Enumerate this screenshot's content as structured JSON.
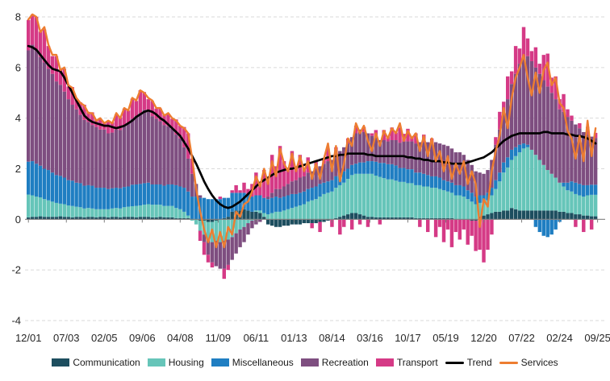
{
  "figure": {
    "background": "#ffffff",
    "plot": {
      "gridline_color": "#d9d9d9",
      "gridline_style": "dashed",
      "zero_axis_color": "#808080",
      "tick_label_color": "#262626"
    }
  },
  "y_axis": {
    "min": -4,
    "max": 8,
    "tick_values": [
      8,
      6,
      4,
      2,
      0,
      -2,
      -4
    ],
    "tick_labels": [
      "8",
      "6",
      "4",
      "2",
      "0",
      "-2",
      "-4"
    ]
  },
  "x_axis": {
    "labels": [
      "12/01",
      "07/03",
      "02/05",
      "09/06",
      "04/08",
      "11/09",
      "06/11",
      "01/13",
      "08/14",
      "03/16",
      "10/17",
      "05/19",
      "12/20",
      "07/22",
      "02/24",
      "09/25"
    ],
    "label_interval_months": 19
  },
  "legend": {
    "position": "bottom-center",
    "items": [
      {
        "label": "Communication",
        "color": "#1d4e5f",
        "marker": "box"
      },
      {
        "label": "Housing",
        "color": "#66c5b9",
        "marker": "box"
      },
      {
        "label": "Miscellaneous",
        "color": "#1f7ec2",
        "marker": "box"
      },
      {
        "label": "Recreation",
        "color": "#7e4e80",
        "marker": "box"
      },
      {
        "label": "Transport",
        "color": "#d53a86",
        "marker": "box"
      },
      {
        "label": "Trend",
        "color": "#000000",
        "marker": "line"
      },
      {
        "label": "Services",
        "color": "#ed7d31",
        "marker": "line"
      }
    ]
  },
  "chart_data": {
    "type": "bar",
    "subtype": "stacked-bars-with-line-overlays",
    "title": "",
    "xlabel": "",
    "ylabel": "",
    "ylim": [
      -4,
      8
    ],
    "grid": "horizontal dashed at 8,6,4,2,-2,-4; solid gray axis at 0",
    "legend_position": "bottom",
    "x_start": "12/01",
    "x_end": "09/25",
    "sampling_note": "values estimated from pixels, sampled every 2 months Dec-2001 to Sep-2025 (143 points)",
    "x_tick_labels": [
      "12/01",
      "07/03",
      "02/05",
      "09/06",
      "04/08",
      "11/09",
      "06/11",
      "01/13",
      "08/14",
      "03/16",
      "10/17",
      "05/19",
      "12/20",
      "07/22",
      "02/24",
      "09/25"
    ],
    "series": [
      {
        "name": "Communication",
        "type": "bar",
        "color": "#1d4e5f",
        "values": [
          0.08,
          0.1,
          0.1,
          0.12,
          0.1,
          0.1,
          0.1,
          0.1,
          0.12,
          0.1,
          0.1,
          0.08,
          0.1,
          0.1,
          0.08,
          0.1,
          0.1,
          0.08,
          0.1,
          0.1,
          0.08,
          0.1,
          0.1,
          0.08,
          0.1,
          0.1,
          0.1,
          0.08,
          0.1,
          0.1,
          0.1,
          0.08,
          0.08,
          0.1,
          0.08,
          0.08,
          0.08,
          0.05,
          0.05,
          0.05,
          0.05,
          0,
          0,
          -0.05,
          -0.05,
          -0.1,
          -0.1,
          -0.05,
          0,
          0.05,
          0.1,
          0.3,
          0.35,
          0.35,
          0.4,
          0.35,
          0.3,
          0.3,
          0.25,
          0.1,
          -0.2,
          -0.25,
          -0.3,
          -0.3,
          -0.25,
          -0.25,
          -0.2,
          -0.2,
          -0.2,
          -0.15,
          -0.15,
          -0.15,
          -0.15,
          -0.1,
          -0.1,
          -0.05,
          0,
          0.05,
          0.1,
          0.15,
          0.2,
          0.25,
          0.25,
          0.2,
          0.15,
          0.1,
          0.1,
          0.08,
          0.08,
          0.08,
          0.08,
          0.08,
          0.08,
          0.08,
          0.08,
          0.08,
          0.08,
          0.05,
          0.05,
          0.05,
          0.05,
          0.05,
          0.05,
          0.05,
          0.05,
          0.05,
          0.05,
          0,
          0,
          0,
          0,
          -0.05,
          -0.05,
          0.1,
          0.15,
          0.2,
          0.25,
          0.3,
          0.3,
          0.35,
          0.35,
          0.45,
          0.4,
          0.35,
          0.35,
          0.35,
          0.35,
          0.35,
          0.35,
          0.35,
          0.35,
          0.35,
          0.35,
          0.3,
          0.3,
          0.25,
          0.25,
          0.2,
          0.2,
          0.15,
          0.15,
          0.12,
          0.12
        ]
      },
      {
        "name": "Housing",
        "type": "bar",
        "color": "#66c5b9",
        "values": [
          0.9,
          0.85,
          0.8,
          0.75,
          0.7,
          0.65,
          0.6,
          0.55,
          0.5,
          0.5,
          0.45,
          0.45,
          0.4,
          0.38,
          0.35,
          0.35,
          0.33,
          0.32,
          0.3,
          0.3,
          0.32,
          0.33,
          0.35,
          0.35,
          0.38,
          0.4,
          0.42,
          0.45,
          0.45,
          0.48,
          0.5,
          0.5,
          0.5,
          0.48,
          0.45,
          0.45,
          0.45,
          0.4,
          0.35,
          0.25,
          0.1,
          -0.05,
          -0.2,
          -0.4,
          -0.55,
          -0.7,
          -0.8,
          -0.8,
          -0.9,
          -0.85,
          -0.8,
          -0.7,
          -0.55,
          -0.4,
          -0.3,
          -0.15,
          -0.05,
          0.05,
          0.1,
          0.15,
          0.2,
          0.25,
          0.3,
          0.3,
          0.35,
          0.4,
          0.45,
          0.5,
          0.55,
          0.6,
          0.7,
          0.75,
          0.8,
          0.9,
          1,
          1.05,
          1.1,
          1.2,
          1.25,
          1.3,
          1.4,
          1.5,
          1.55,
          1.6,
          1.65,
          1.7,
          1.7,
          1.65,
          1.6,
          1.55,
          1.5,
          1.5,
          1.45,
          1.4,
          1.4,
          1.35,
          1.35,
          1.3,
          1.3,
          1.25,
          1.25,
          1.2,
          1.2,
          1.15,
          1.1,
          1.05,
          1,
          0.95,
          0.95,
          0.9,
          0.8,
          0.7,
          0.6,
          0.55,
          0.5,
          0.55,
          0.7,
          0.9,
          1.2,
          1.5,
          1.7,
          1.9,
          2.1,
          2.3,
          2.45,
          2.5,
          2.4,
          2.2,
          2,
          1.8,
          1.6,
          1.45,
          1.3,
          1.15,
          1,
          0.9,
          0.85,
          0.8,
          0.75,
          0.75,
          0.8,
          0.85,
          0.85
        ]
      },
      {
        "name": "Miscellaneous",
        "type": "bar",
        "color": "#1f7ec2",
        "values": [
          1.3,
          1.35,
          1.3,
          1.25,
          1.2,
          1.2,
          1.15,
          1.1,
          1.1,
          1.05,
          1,
          1,
          0.95,
          0.95,
          0.9,
          0.9,
          0.9,
          0.85,
          0.85,
          0.85,
          0.8,
          0.8,
          0.8,
          0.8,
          0.8,
          0.8,
          0.85,
          0.85,
          0.85,
          0.85,
          0.85,
          0.8,
          0.8,
          0.8,
          0.8,
          0.85,
          0.85,
          0.9,
          0.9,
          0.95,
          0.95,
          0.9,
          0.9,
          0.85,
          0.85,
          0.8,
          0.8,
          0.8,
          0.8,
          0.8,
          0.75,
          0.75,
          0.7,
          0.7,
          0.65,
          0.65,
          0.6,
          0.6,
          0.6,
          0.6,
          0.6,
          0.6,
          0.6,
          0.55,
          0.55,
          0.55,
          0.55,
          0.5,
          0.5,
          0.5,
          0.5,
          0.5,
          0.5,
          0.5,
          0.45,
          0.45,
          0.45,
          0.45,
          0.45,
          0.45,
          0.4,
          0.4,
          0.4,
          0.45,
          0.45,
          0.5,
          0.5,
          0.55,
          0.55,
          0.6,
          0.6,
          0.6,
          0.6,
          0.55,
          0.55,
          0.55,
          0.55,
          0.5,
          0.5,
          0.5,
          0.45,
          0.45,
          0.45,
          0.45,
          0.4,
          0.4,
          0.4,
          0.4,
          0.4,
          0.4,
          0.35,
          0.35,
          0.3,
          0.3,
          0.3,
          0.3,
          0.3,
          0.35,
          0.35,
          0.4,
          0.4,
          0.4,
          0.35,
          0.3,
          0.2,
          0.1,
          0,
          -0.3,
          -0.5,
          -0.65,
          -0.7,
          -0.6,
          -0.4,
          -0.1,
          0.15,
          0.3,
          0.4,
          0.45,
          0.45,
          0.45,
          0.4,
          0.4,
          0.4
        ]
      },
      {
        "name": "Recreation",
        "type": "bar",
        "color": "#7e4e80",
        "values": [
          4.4,
          4.6,
          4.5,
          4.3,
          4.2,
          4,
          3.9,
          3.7,
          3.6,
          3.4,
          3.2,
          3,
          2.9,
          2.7,
          2.6,
          2.5,
          2.4,
          2.4,
          2.3,
          2.3,
          2.2,
          2.2,
          2.3,
          2.3,
          2.4,
          2.5,
          2.6,
          2.7,
          2.8,
          2.9,
          2.8,
          2.7,
          2.6,
          2.5,
          2.4,
          2.3,
          2.2,
          2,
          1.9,
          1.6,
          1.3,
          0.9,
          0.5,
          0.1,
          -0.3,
          -0.6,
          -0.8,
          -1,
          -1.05,
          -1.1,
          -1,
          -0.9,
          -0.8,
          -0.7,
          -0.6,
          -0.45,
          -0.3,
          -0.2,
          -0.1,
          0,
          0.1,
          0.2,
          0.3,
          0.35,
          0.4,
          0.45,
          0.5,
          0.55,
          0.6,
          0.6,
          0.65,
          0.65,
          0.7,
          0.7,
          0.75,
          0.8,
          0.8,
          0.85,
          0.9,
          0.95,
          1,
          1.1,
          1.2,
          1.3,
          1.2,
          1.1,
          1,
          0.95,
          0.9,
          0.9,
          0.9,
          0.95,
          1,
          1,
          1.05,
          1.1,
          1.1,
          1.15,
          1.2,
          1.25,
          1.3,
          1.3,
          1.35,
          1.35,
          1.4,
          1.4,
          1.35,
          1.3,
          1.3,
          1.25,
          1.2,
          1.1,
          1,
          0.9,
          0.85,
          0.9,
          1.1,
          1.4,
          1.7,
          2,
          2.3,
          2.6,
          2.9,
          3.2,
          3.4,
          3.5,
          3.5,
          3.45,
          3.4,
          3.35,
          3.3,
          3.2,
          3.1,
          2.9,
          2.8,
          2.6,
          2.4,
          2.3,
          2.2,
          2.1,
          2,
          1.9,
          1.85
        ]
      },
      {
        "name": "Transport",
        "type": "bar",
        "color": "#d53a86",
        "values": [
          1.2,
          1.2,
          1.3,
          1,
          1.3,
          0.9,
          0.7,
          1,
          0.6,
          0.9,
          0.5,
          0.7,
          0.4,
          0.5,
          0.6,
          0.4,
          0.5,
          0.3,
          0.4,
          0.3,
          0.5,
          0.4,
          0.6,
          0.5,
          0.7,
          0.5,
          0.8,
          0.6,
          0.9,
          0.7,
          0.5,
          0.6,
          0.4,
          0.5,
          0.4,
          0.5,
          0.4,
          0.6,
          0.5,
          0.8,
          1,
          0.6,
          0,
          -0.4,
          -0.5,
          -0.3,
          -0.2,
          0,
          0.1,
          -0.4,
          -0.2,
          0.1,
          0.3,
          0.1,
          0.4,
          0.2,
          0.5,
          0.9,
          0.5,
          1.1,
          0.7,
          1.5,
          0.9,
          1.7,
          1,
          0.6,
          1.2,
          0.5,
          0.9,
          0.3,
          0.6,
          -0.2,
          0.3,
          -0.4,
          0.2,
          0.5,
          -0.3,
          0.3,
          -0.6,
          -0.3,
          0.2,
          -0.4,
          0.3,
          -0.2,
          0.2,
          -0.3,
          0.1,
          0.3,
          -0.2,
          0.4,
          0.2,
          0.5,
          0.3,
          0.6,
          0.3,
          0.5,
          0.2,
          0.4,
          -0.3,
          0.3,
          -0.5,
          0.2,
          -0.7,
          -0.3,
          -0.9,
          -0.4,
          -1.1,
          -0.5,
          -0.8,
          -0.4,
          -1,
          -0.6,
          -1.2,
          -1.2,
          -1.7,
          -1.2,
          -0.6,
          0.3,
          0.7,
          0.4,
          0.9,
          0.5,
          1.1,
          0.6,
          1.2,
          0.7,
          0.4,
          0.8,
          0.4,
          1,
          1.3,
          0.6,
          0.9,
          0.4,
          0.7,
          0.3,
          0.2,
          -0.3,
          0.2,
          -0.5,
          0.3,
          -0.4,
          0.2
        ]
      },
      {
        "name": "Trend",
        "type": "line",
        "color": "#000000",
        "values": [
          6.85,
          6.8,
          6.7,
          6.5,
          6.3,
          6.1,
          5.95,
          5.9,
          5.85,
          5.6,
          5.3,
          5,
          4.7,
          4.4,
          4.1,
          3.95,
          3.85,
          3.8,
          3.75,
          3.7,
          3.7,
          3.65,
          3.6,
          3.65,
          3.7,
          3.8,
          3.9,
          4.05,
          4.15,
          4.25,
          4.3,
          4.25,
          4.15,
          4,
          3.9,
          3.75,
          3.6,
          3.45,
          3.3,
          3.05,
          2.8,
          2.5,
          2.2,
          1.85,
          1.5,
          1.2,
          0.95,
          0.75,
          0.6,
          0.5,
          0.45,
          0.5,
          0.6,
          0.7,
          0.85,
          1,
          1.15,
          1.3,
          1.45,
          1.55,
          1.65,
          1.75,
          1.85,
          1.9,
          1.95,
          2,
          2,
          2.05,
          2.1,
          2.15,
          2.2,
          2.25,
          2.3,
          2.35,
          2.4,
          2.45,
          2.5,
          2.5,
          2.55,
          2.55,
          2.6,
          2.6,
          2.6,
          2.6,
          2.6,
          2.55,
          2.55,
          2.5,
          2.5,
          2.5,
          2.5,
          2.5,
          2.5,
          2.5,
          2.5,
          2.45,
          2.45,
          2.4,
          2.4,
          2.35,
          2.35,
          2.3,
          2.3,
          2.3,
          2.25,
          2.25,
          2.2,
          2.2,
          2.2,
          2.2,
          2.25,
          2.3,
          2.35,
          2.4,
          2.45,
          2.55,
          2.65,
          2.8,
          2.95,
          3.1,
          3.2,
          3.3,
          3.35,
          3.4,
          3.4,
          3.4,
          3.4,
          3.4,
          3.4,
          3.45,
          3.45,
          3.4,
          3.4,
          3.4,
          3.4,
          3.35,
          3.35,
          3.3,
          3.3,
          3.25,
          3.2,
          3.1,
          3
        ]
      },
      {
        "name": "Services",
        "type": "line",
        "color": "#ed7d31",
        "values": [
          7.9,
          8.1,
          8,
          7.4,
          7.6,
          6.9,
          6.5,
          6.5,
          5.9,
          6,
          5.3,
          5.2,
          4.8,
          4.6,
          4.5,
          4.2,
          4.2,
          3.9,
          4,
          3.8,
          3.9,
          3.8,
          4.2,
          4,
          4.4,
          4.3,
          4.8,
          4.7,
          5.1,
          5,
          4.8,
          4.7,
          4.4,
          4.4,
          4.1,
          4.2,
          4,
          3.9,
          3.7,
          3.6,
          3.4,
          2.4,
          1.2,
          0.3,
          -0.4,
          -0.9,
          -0.4,
          -1.1,
          -0.5,
          -1.1,
          -0.3,
          -0.6,
          0.3,
          0.1,
          0.6,
          0.7,
          1.1,
          1.7,
          1.3,
          2,
          1.4,
          2.3,
          1.7,
          2.8,
          2.2,
          1.9,
          2.6,
          1.9,
          2.5,
          1.9,
          2.3,
          1.6,
          2.2,
          1.6,
          2.4,
          3,
          1.9,
          2.9,
          1.5,
          2.2,
          3.2,
          2.9,
          3.8,
          3.4,
          3.7,
          3.1,
          2.7,
          3.4,
          2.9,
          3.5,
          3.2,
          3.6,
          3.4,
          3.8,
          3.1,
          3.5,
          3.2,
          3.4,
          2.7,
          3.3,
          2.5,
          3.2,
          2.3,
          2.7,
          1.9,
          2.5,
          1.6,
          2.2,
          1.8,
          2.3,
          1.4,
          1.9,
          1.4,
          -0.3,
          0.8,
          0.5,
          1.9,
          2.7,
          3.3,
          4.4,
          3.6,
          4.8,
          5.6,
          6,
          6.5,
          5.6,
          4.9,
          5.8,
          5,
          5.9,
          6.2,
          5.3,
          5.6,
          4.6,
          4.4,
          3.5,
          3.2,
          2.4,
          3.3,
          2.3,
          3.9,
          2.5,
          3.6
        ]
      }
    ]
  }
}
